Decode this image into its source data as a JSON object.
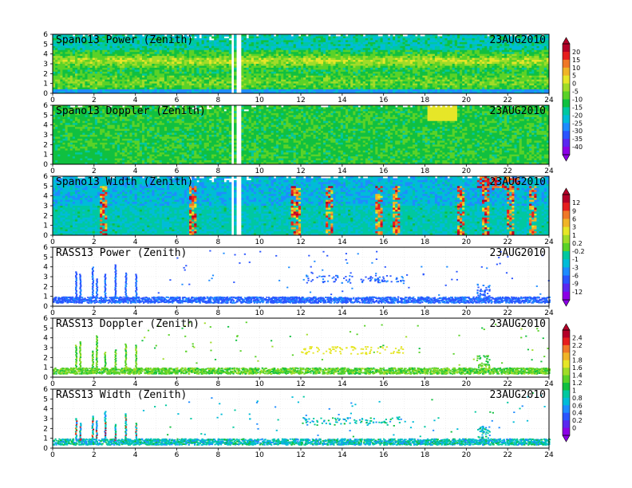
{
  "panels": [
    {
      "title": "Spano13 Power (Zenith)",
      "date": "23AUG2010",
      "kind": "wind",
      "field": "power"
    },
    {
      "title": "Spano13 Doppler (Zenith)",
      "date": "23AUG2010",
      "kind": "wind",
      "field": "doppler"
    },
    {
      "title": "Spano13 Width (Zenith)",
      "date": "23AUG2010",
      "kind": "wind",
      "field": "width"
    },
    {
      "title": "RASS13 Power (Zenith)",
      "date": "23AUG2010",
      "kind": "rass",
      "field": "power"
    },
    {
      "title": "RASS13 Doppler (Zenith)",
      "date": "23AUG2010",
      "kind": "rass",
      "field": "doppler"
    },
    {
      "title": "RASS13 Width (Zenith)",
      "date": "23AUG2010",
      "kind": "rass",
      "field": "width"
    }
  ],
  "colorbars": [
    {
      "labels": [
        "20",
        "15",
        "10",
        "5",
        "0",
        "-5",
        "-10",
        "-15",
        "-20",
        "-25",
        "-30",
        "-35",
        "-40"
      ]
    },
    {
      "labels": [
        "12",
        "9",
        "6",
        "3",
        "1",
        "0.2",
        "-0.2",
        "-1",
        "-3",
        "-6",
        "-9",
        "-12"
      ]
    },
    {
      "labels": [
        "2.4",
        "2.2",
        "2",
        "1.8",
        "1.6",
        "1.4",
        "1.2",
        "1",
        "0.8",
        "0.6",
        "0.4",
        "0.2",
        "0"
      ]
    }
  ],
  "palette": [
    "#8c00e6",
    "#5a28f0",
    "#2a55ff",
    "#1e8cff",
    "#00bcd8",
    "#00c8a0",
    "#10c040",
    "#5ad228",
    "#a0dc28",
    "#e6e628",
    "#f0b428",
    "#f07828",
    "#e61e1e",
    "#b40028"
  ],
  "chart_data": [
    {
      "type": "heatmap",
      "title": "Spano13 Power (Zenith)",
      "xlim": [
        0,
        24
      ],
      "ylim": [
        0,
        6
      ],
      "xticks": [
        0,
        2,
        4,
        6,
        8,
        10,
        12,
        14,
        16,
        18,
        20,
        22,
        24
      ],
      "yticks": [
        0,
        1,
        2,
        3,
        4,
        5,
        6
      ],
      "features": [
        {
          "description": "high-power layer near 3.2 km",
          "x_range": [
            0,
            24
          ],
          "y_center": 3.2
        }
      ]
    },
    {
      "type": "heatmap",
      "title": "Spano13 Doppler (Zenith)",
      "xlim": [
        0,
        24
      ],
      "ylim": [
        0,
        6
      ],
      "xticks": [
        0,
        2,
        4,
        6,
        8,
        10,
        12,
        14,
        16,
        18,
        20,
        22,
        24
      ],
      "yticks": [
        0,
        1,
        2,
        3,
        4,
        5,
        6
      ]
    },
    {
      "type": "heatmap",
      "title": "Spano13 Width (Zenith)",
      "xlim": [
        0,
        24
      ],
      "ylim": [
        0,
        6
      ],
      "xticks": [
        0,
        2,
        4,
        6,
        8,
        10,
        12,
        14,
        16,
        18,
        20,
        22,
        24
      ],
      "yticks": [
        0,
        1,
        2,
        3,
        4,
        5,
        6
      ],
      "features": [
        {
          "description": "high-width columns",
          "x": [
            2.4,
            6.7,
            11.7,
            13.3,
            15.7,
            16.6,
            19.7,
            20.9,
            22.1,
            23.2
          ]
        }
      ]
    },
    {
      "type": "scatter",
      "title": "RASS13 Power (Zenith)",
      "xlim": [
        0,
        24
      ],
      "ylim": [
        0,
        6
      ],
      "xticks": [
        0,
        2,
        4,
        6,
        8,
        10,
        12,
        14,
        16,
        18,
        20,
        22,
        24
      ],
      "yticks": [
        0,
        1,
        2,
        3,
        4,
        5,
        6
      ],
      "features": [
        {
          "description": "dense band",
          "y_range": [
            0.4,
            1.0
          ]
        },
        {
          "description": "vertical columns",
          "x": [
            1.1,
            1.9,
            2.5,
            3.0,
            3.5,
            4.0
          ]
        },
        {
          "description": "elevated cluster",
          "x_range": [
            12,
            17
          ],
          "y_range": [
            2.4,
            3.2
          ]
        }
      ]
    },
    {
      "type": "scatter",
      "title": "RASS13 Doppler (Zenith)",
      "xlim": [
        0,
        24
      ],
      "ylim": [
        0,
        6
      ],
      "xticks": [
        0,
        2,
        4,
        6,
        8,
        10,
        12,
        14,
        16,
        18,
        20,
        22,
        24
      ],
      "yticks": [
        0,
        1,
        2,
        3,
        4,
        5,
        6
      ]
    },
    {
      "type": "scatter",
      "title": "RASS13 Width (Zenith)",
      "xlim": [
        0,
        24
      ],
      "ylim": [
        0,
        6
      ],
      "xticks": [
        0,
        2,
        4,
        6,
        8,
        10,
        12,
        14,
        16,
        18,
        20,
        22,
        24
      ],
      "yticks": [
        0,
        1,
        2,
        3,
        4,
        5,
        6
      ]
    }
  ]
}
